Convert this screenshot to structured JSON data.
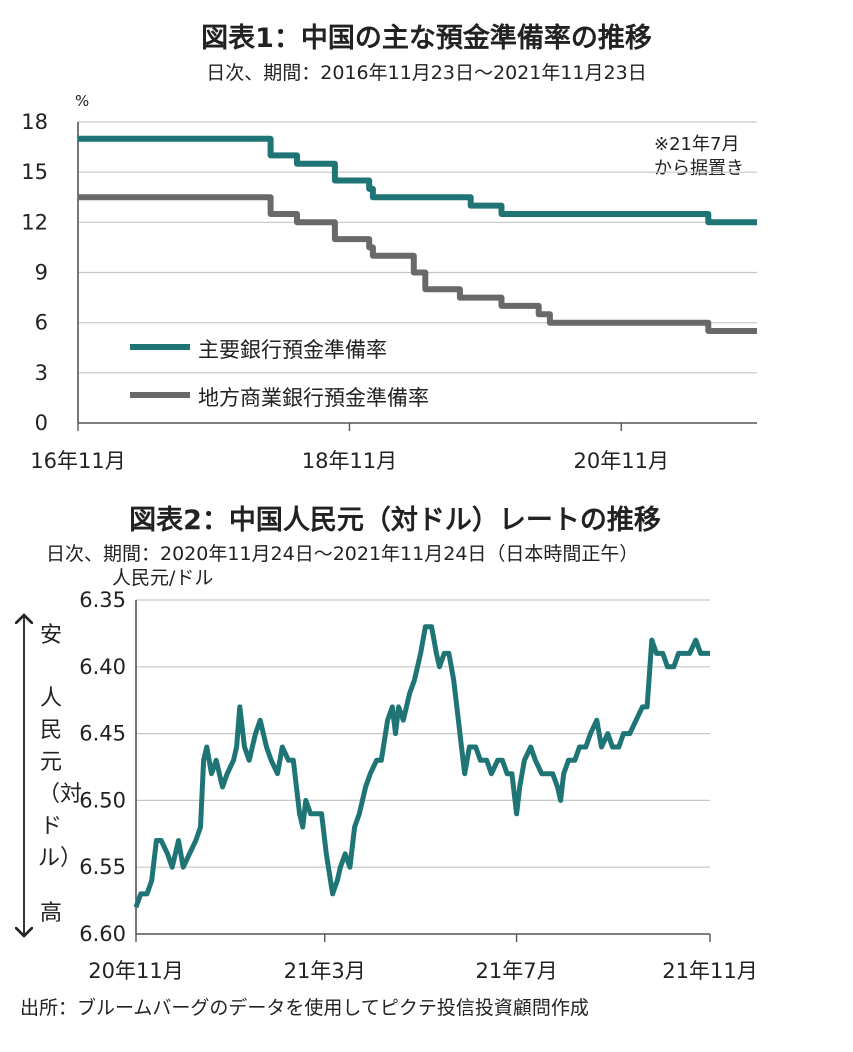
{
  "colors": {
    "teal": "#1f7575",
    "gray": "#696969",
    "grid": "#c6c6c6",
    "axis": "#555555"
  },
  "chart1": {
    "title": "図表1：中国の主な預金準備率の推移",
    "subtitle": "日次、期間：2016年11月23日～2021年11月23日",
    "unit": "%",
    "note_line1": "※21年7月",
    "note_line2": "から据置き",
    "legend": [
      "主要銀行預金準備率",
      "地方商業銀行預金準備率"
    ]
  },
  "chart2": {
    "title": "図表2：中国人民元（対ドル）レートの推移",
    "subtitle": "日次、期間：2020年11月24日～2021年11月24日（日本時間正午）",
    "unit": "人民元/ドル",
    "arrow_top": "安",
    "arrow_bottom": "高",
    "arrow_middle": "人民元（対ドル）"
  },
  "footer": "出所：ブルームバーグのデータを使用してピクテ投信投資顧問作成",
  "chart_data": [
    {
      "type": "line",
      "x_type": "date",
      "xlim": [
        "2016-11-23",
        "2021-11-23"
      ],
      "ylim": [
        0,
        18
      ],
      "yticks": [
        0,
        3,
        6,
        9,
        12,
        15,
        18
      ],
      "ytick_labels": [
        "0",
        "3",
        "6",
        "9",
        "12",
        "15",
        "18"
      ],
      "xtick_dates": [
        "2016-11-23",
        "2018-11-23",
        "2020-11-23"
      ],
      "xtick_labels": [
        "16年11月",
        "18年11月",
        "20年11月"
      ],
      "grid": true,
      "legend_position": "bottom-left",
      "series": [
        {
          "name": "主要銀行預金準備率",
          "color": "#1f7575",
          "points": [
            [
              "2016-11-23",
              17.0
            ],
            [
              "2018-04-25",
              17.0
            ],
            [
              "2018-04-25",
              16.0
            ],
            [
              "2018-07-05",
              16.0
            ],
            [
              "2018-07-05",
              15.5
            ],
            [
              "2018-10-15",
              15.5
            ],
            [
              "2018-10-15",
              14.5
            ],
            [
              "2019-01-15",
              14.5
            ],
            [
              "2019-01-15",
              14.0
            ],
            [
              "2019-01-25",
              14.0
            ],
            [
              "2019-01-25",
              13.5
            ],
            [
              "2019-10-15",
              13.5
            ],
            [
              "2019-10-15",
              13.0
            ],
            [
              "2020-01-06",
              13.0
            ],
            [
              "2020-01-06",
              12.5
            ],
            [
              "2021-07-15",
              12.5
            ],
            [
              "2021-07-15",
              12.0
            ],
            [
              "2021-11-23",
              12.0
            ]
          ]
        },
        {
          "name": "地方商業銀行預金準備率",
          "color": "#696969",
          "points": [
            [
              "2016-11-23",
              13.5
            ],
            [
              "2018-04-25",
              13.5
            ],
            [
              "2018-04-25",
              12.5
            ],
            [
              "2018-07-05",
              12.5
            ],
            [
              "2018-07-05",
              12.0
            ],
            [
              "2018-10-15",
              12.0
            ],
            [
              "2018-10-15",
              11.0
            ],
            [
              "2019-01-15",
              11.0
            ],
            [
              "2019-01-15",
              10.5
            ],
            [
              "2019-01-25",
              10.5
            ],
            [
              "2019-01-25",
              10.0
            ],
            [
              "2019-05-15",
              10.0
            ],
            [
              "2019-05-15",
              9.0
            ],
            [
              "2019-06-15",
              9.0
            ],
            [
              "2019-06-15",
              8.0
            ],
            [
              "2019-09-16",
              8.0
            ],
            [
              "2019-09-16",
              7.5
            ],
            [
              "2019-11-20",
              7.5
            ],
            [
              "2020-01-06",
              7.5
            ],
            [
              "2020-01-06",
              7.0
            ],
            [
              "2020-04-15",
              7.0
            ],
            [
              "2020-04-15",
              6.5
            ],
            [
              "2020-05-15",
              6.5
            ],
            [
              "2020-05-15",
              6.0
            ],
            [
              "2021-07-15",
              6.0
            ],
            [
              "2021-07-15",
              5.5
            ],
            [
              "2021-11-23",
              5.5
            ]
          ]
        }
      ]
    },
    {
      "type": "line",
      "x_type": "date",
      "xlim": [
        "2020-11-24",
        "2021-11-24"
      ],
      "ylim": [
        6.35,
        6.6
      ],
      "y_inverted": true,
      "yticks": [
        6.35,
        6.4,
        6.45,
        6.5,
        6.55,
        6.6
      ],
      "ytick_labels": [
        "6.35",
        "6.40",
        "6.45",
        "6.50",
        "6.55",
        "6.60"
      ],
      "xtick_dates": [
        "2020-11-24",
        "2021-03-24",
        "2021-07-24",
        "2021-11-24"
      ],
      "xtick_labels": [
        "20年11月",
        "21年3月",
        "21年7月",
        "21年11月"
      ],
      "grid": true,
      "series": [
        {
          "color": "#1f7575",
          "points": [
            [
              "2020-11-24",
              6.58
            ],
            [
              "2020-11-27",
              6.57
            ],
            [
              "2020-12-01",
              6.57
            ],
            [
              "2020-12-04",
              6.56
            ],
            [
              "2020-12-07",
              6.53
            ],
            [
              "2020-12-10",
              6.53
            ],
            [
              "2020-12-14",
              6.54
            ],
            [
              "2020-12-17",
              6.55
            ],
            [
              "2020-12-21",
              6.53
            ],
            [
              "2020-12-24",
              6.55
            ],
            [
              "2020-12-28",
              6.54
            ],
            [
              "2021-01-01",
              6.53
            ],
            [
              "2021-01-04",
              6.52
            ],
            [
              "2021-01-06",
              6.47
            ],
            [
              "2021-01-08",
              6.46
            ],
            [
              "2021-01-11",
              6.48
            ],
            [
              "2021-01-14",
              6.47
            ],
            [
              "2021-01-18",
              6.49
            ],
            [
              "2021-01-21",
              6.48
            ],
            [
              "2021-01-25",
              6.47
            ],
            [
              "2021-01-27",
              6.46
            ],
            [
              "2021-01-29",
              6.43
            ],
            [
              "2021-02-01",
              6.46
            ],
            [
              "2021-02-04",
              6.47
            ],
            [
              "2021-02-08",
              6.45
            ],
            [
              "2021-02-11",
              6.44
            ],
            [
              "2021-02-15",
              6.46
            ],
            [
              "2021-02-18",
              6.47
            ],
            [
              "2021-02-22",
              6.48
            ],
            [
              "2021-02-25",
              6.46
            ],
            [
              "2021-03-01",
              6.47
            ],
            [
              "2021-03-04",
              6.47
            ],
            [
              "2021-03-08",
              6.51
            ],
            [
              "2021-03-10",
              6.52
            ],
            [
              "2021-03-12",
              6.5
            ],
            [
              "2021-03-15",
              6.51
            ],
            [
              "2021-03-18",
              6.51
            ],
            [
              "2021-03-22",
              6.51
            ],
            [
              "2021-03-25",
              6.54
            ],
            [
              "2021-03-29",
              6.57
            ],
            [
              "2021-04-01",
              6.56
            ],
            [
              "2021-04-03",
              6.55
            ],
            [
              "2021-04-06",
              6.54
            ],
            [
              "2021-04-09",
              6.55
            ],
            [
              "2021-04-12",
              6.52
            ],
            [
              "2021-04-15",
              6.51
            ],
            [
              "2021-04-19",
              6.49
            ],
            [
              "2021-04-22",
              6.48
            ],
            [
              "2021-04-26",
              6.47
            ],
            [
              "2021-04-29",
              6.47
            ],
            [
              "2021-05-03",
              6.44
            ],
            [
              "2021-05-06",
              6.43
            ],
            [
              "2021-05-08",
              6.45
            ],
            [
              "2021-05-10",
              6.43
            ],
            [
              "2021-05-13",
              6.44
            ],
            [
              "2021-05-17",
              6.42
            ],
            [
              "2021-05-20",
              6.41
            ],
            [
              "2021-05-24",
              6.39
            ],
            [
              "2021-05-27",
              6.37
            ],
            [
              "2021-05-31",
              6.37
            ],
            [
              "2021-06-03",
              6.39
            ],
            [
              "2021-06-05",
              6.4
            ],
            [
              "2021-06-08",
              6.39
            ],
            [
              "2021-06-11",
              6.39
            ],
            [
              "2021-06-14",
              6.41
            ],
            [
              "2021-06-17",
              6.44
            ],
            [
              "2021-06-19",
              6.46
            ],
            [
              "2021-06-21",
              6.48
            ],
            [
              "2021-06-24",
              6.46
            ],
            [
              "2021-06-28",
              6.46
            ],
            [
              "2021-07-01",
              6.47
            ],
            [
              "2021-07-05",
              6.47
            ],
            [
              "2021-07-08",
              6.48
            ],
            [
              "2021-07-12",
              6.47
            ],
            [
              "2021-07-15",
              6.47
            ],
            [
              "2021-07-18",
              6.48
            ],
            [
              "2021-07-21",
              6.48
            ],
            [
              "2021-07-24",
              6.51
            ],
            [
              "2021-07-26",
              6.49
            ],
            [
              "2021-07-29",
              6.47
            ],
            [
              "2021-08-02",
              6.46
            ],
            [
              "2021-08-05",
              6.47
            ],
            [
              "2021-08-09",
              6.48
            ],
            [
              "2021-08-12",
              6.48
            ],
            [
              "2021-08-16",
              6.48
            ],
            [
              "2021-08-19",
              6.49
            ],
            [
              "2021-08-21",
              6.5
            ],
            [
              "2021-08-23",
              6.48
            ],
            [
              "2021-08-26",
              6.47
            ],
            [
              "2021-08-30",
              6.47
            ],
            [
              "2021-09-02",
              6.46
            ],
            [
              "2021-09-06",
              6.46
            ],
            [
              "2021-09-09",
              6.45
            ],
            [
              "2021-09-13",
              6.44
            ],
            [
              "2021-09-16",
              6.46
            ],
            [
              "2021-09-20",
              6.45
            ],
            [
              "2021-09-23",
              6.46
            ],
            [
              "2021-09-27",
              6.46
            ],
            [
              "2021-09-30",
              6.45
            ],
            [
              "2021-10-04",
              6.45
            ],
            [
              "2021-10-08",
              6.44
            ],
            [
              "2021-10-12",
              6.43
            ],
            [
              "2021-10-15",
              6.43
            ],
            [
              "2021-10-18",
              6.38
            ],
            [
              "2021-10-21",
              6.39
            ],
            [
              "2021-10-25",
              6.39
            ],
            [
              "2021-10-28",
              6.4
            ],
            [
              "2021-11-01",
              6.4
            ],
            [
              "2021-11-04",
              6.39
            ],
            [
              "2021-11-08",
              6.39
            ],
            [
              "2021-11-11",
              6.39
            ],
            [
              "2021-11-15",
              6.38
            ],
            [
              "2021-11-18",
              6.39
            ],
            [
              "2021-11-22",
              6.39
            ],
            [
              "2021-11-24",
              6.39
            ]
          ]
        }
      ]
    }
  ]
}
